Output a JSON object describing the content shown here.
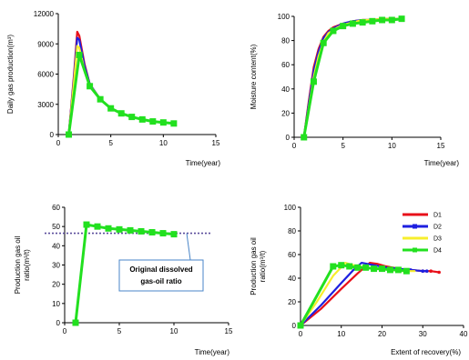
{
  "colors": {
    "D1": "#e8101a",
    "D2": "#1d1fe0",
    "D3": "#f7ee2c",
    "D4": "#22e01f",
    "reference_line": "#5a4b9a",
    "callout_border": "#4a86c8"
  },
  "chart_data": [
    {
      "id": "gas",
      "type": "line",
      "xlabel": "Time(year)",
      "ylabel": "Daily gas production(m³)",
      "xlim": [
        0,
        15
      ],
      "ylim": [
        0,
        12000
      ],
      "xticks": [
        "0",
        "5",
        "10",
        "15"
      ],
      "yticks": [
        "0",
        "3000",
        "6000",
        "9000",
        "12000"
      ],
      "grid": false,
      "series": [
        {
          "name": "D1",
          "color_key": "D1",
          "markers": false,
          "x": [
            1,
            1.5,
            1.8,
            2,
            2.5,
            3,
            4,
            5,
            6,
            7,
            8,
            9,
            10,
            11
          ],
          "y": [
            0,
            6000,
            10200,
            9800,
            7000,
            5000,
            3500,
            2600,
            2100,
            1750,
            1500,
            1300,
            1200,
            1100
          ]
        },
        {
          "name": "D2",
          "color_key": "D2",
          "markers": false,
          "x": [
            1,
            1.5,
            1.8,
            2,
            2.5,
            3,
            4,
            5,
            6,
            7,
            8,
            9,
            10,
            11
          ],
          "y": [
            0,
            5700,
            9600,
            9400,
            6800,
            5000,
            3500,
            2600,
            2100,
            1750,
            1500,
            1300,
            1200,
            1100
          ]
        },
        {
          "name": "D3",
          "color_key": "D3",
          "markers": false,
          "x": [
            1,
            1.5,
            1.8,
            2,
            2.5,
            3,
            4,
            5,
            6,
            7,
            8,
            9,
            10,
            11
          ],
          "y": [
            0,
            5300,
            8800,
            8600,
            6400,
            4900,
            3500,
            2600,
            2100,
            1750,
            1500,
            1300,
            1200,
            1100
          ]
        },
        {
          "name": "D4",
          "color_key": "D4",
          "markers": true,
          "x": [
            1,
            2,
            3,
            4,
            5,
            6,
            7,
            8,
            9,
            10,
            11
          ],
          "y": [
            0,
            7900,
            4800,
            3500,
            2600,
            2100,
            1750,
            1500,
            1300,
            1200,
            1100
          ]
        }
      ]
    },
    {
      "id": "moisture",
      "type": "line",
      "xlabel": "Time(year)",
      "ylabel": "Moisture content(%)",
      "xlim": [
        0,
        15
      ],
      "ylim": [
        0,
        100
      ],
      "xticks": [
        "0",
        "5",
        "10",
        "15"
      ],
      "yticks": [
        "0",
        "20",
        "40",
        "60",
        "80",
        "100"
      ],
      "grid": false,
      "series": [
        {
          "name": "D1",
          "color_key": "D1",
          "markers": false,
          "x": [
            1,
            1.5,
            2,
            2.5,
            3,
            3.5,
            4,
            5,
            6,
            7,
            8,
            9,
            10,
            11
          ],
          "y": [
            0,
            30,
            58,
            73,
            83,
            88,
            91,
            94,
            96,
            97,
            97,
            98,
            98,
            98
          ]
        },
        {
          "name": "D2",
          "color_key": "D2",
          "markers": false,
          "x": [
            1,
            1.5,
            2,
            2.5,
            3,
            3.5,
            4,
            5,
            6,
            7,
            8,
            9,
            10,
            11
          ],
          "y": [
            0,
            28,
            55,
            71,
            82,
            87,
            90,
            94,
            96,
            97,
            97,
            98,
            98,
            98
          ]
        },
        {
          "name": "D3",
          "color_key": "D3",
          "markers": false,
          "x": [
            1,
            1.5,
            2,
            2.5,
            3,
            3.5,
            4,
            5,
            6,
            7,
            8,
            9,
            10,
            11
          ],
          "y": [
            0,
            25,
            50,
            67,
            79,
            86,
            89,
            93,
            95,
            97,
            97,
            98,
            98,
            98
          ]
        },
        {
          "name": "D4",
          "color_key": "D4",
          "markers": true,
          "x": [
            1,
            2,
            3,
            4,
            5,
            6,
            7,
            8,
            9,
            10,
            11
          ],
          "y": [
            0,
            46,
            78,
            88,
            92,
            94,
            95,
            96,
            97,
            97,
            98
          ]
        }
      ]
    },
    {
      "id": "gor_time",
      "type": "line",
      "xlabel": "Time(year)",
      "ylabel": "Production gas oil ratio(m³/t)",
      "xlim": [
        0,
        15
      ],
      "ylim": [
        0,
        60
      ],
      "xticks": [
        "0",
        "5",
        "10",
        "15"
      ],
      "yticks": [
        "0",
        "10",
        "20",
        "30",
        "40",
        "50",
        "60"
      ],
      "grid": false,
      "reference_line": {
        "y": 46.5,
        "label": "Original dissolved gas-oil ratio"
      },
      "series": [
        {
          "name": "D1",
          "color_key": "D1",
          "markers": false,
          "x": [
            1,
            2,
            3,
            4,
            5,
            6,
            7,
            8,
            9,
            10
          ],
          "y": [
            0,
            51,
            50,
            49,
            48.5,
            48,
            47.5,
            47,
            46.5,
            46
          ]
        },
        {
          "name": "D2",
          "color_key": "D2",
          "markers": false,
          "x": [
            1,
            2,
            3,
            4,
            5,
            6,
            7,
            8,
            9,
            10
          ],
          "y": [
            0,
            51,
            50,
            49,
            48.5,
            48,
            47.5,
            47,
            46.5,
            46
          ]
        },
        {
          "name": "D3",
          "color_key": "D3",
          "markers": false,
          "x": [
            1,
            2,
            3,
            4,
            5,
            6,
            7,
            8,
            9,
            10
          ],
          "y": [
            0,
            51,
            50,
            49,
            48.5,
            48,
            47.5,
            47,
            46.5,
            46
          ]
        },
        {
          "name": "D4",
          "color_key": "D4",
          "markers": true,
          "x": [
            1,
            2,
            3,
            4,
            5,
            6,
            7,
            8,
            9,
            10
          ],
          "y": [
            0,
            51,
            50,
            49,
            48.5,
            48,
            47.5,
            47,
            46.5,
            46
          ]
        }
      ]
    },
    {
      "id": "gor_recovery",
      "type": "line",
      "xlabel": "Extent of recovery(%)",
      "ylabel": "Production gas oil ratio(m³/t)",
      "xlim": [
        0,
        40
      ],
      "ylim": [
        0,
        100
      ],
      "xticks": [
        "0",
        "10",
        "20",
        "30",
        "40"
      ],
      "yticks": [
        "0",
        "20",
        "40",
        "60",
        "80",
        "100"
      ],
      "grid": false,
      "legend": {
        "placement": "top-right",
        "entries": [
          "D1",
          "D2",
          "D3",
          "D4"
        ]
      },
      "series": [
        {
          "name": "D1",
          "color_key": "D1",
          "markers": false,
          "end_markers": true,
          "x": [
            0,
            5,
            10,
            14,
            17,
            19,
            21,
            24,
            27,
            30,
            32,
            34
          ],
          "y": [
            0,
            14,
            31,
            44,
            53,
            52,
            50,
            48,
            47,
            46,
            46,
            45
          ]
        },
        {
          "name": "D2",
          "color_key": "D2",
          "markers": false,
          "end_markers": true,
          "x": [
            0,
            5,
            10,
            13,
            15,
            18,
            21,
            24,
            27,
            30,
            31
          ],
          "y": [
            0,
            17,
            36,
            47,
            53,
            51,
            49,
            48,
            47,
            46,
            46
          ]
        },
        {
          "name": "D3",
          "color_key": "D3",
          "markers": false,
          "x": [
            0,
            4,
            8,
            11,
            13,
            16,
            19,
            22,
            25,
            28
          ],
          "y": [
            0,
            20,
            42,
            53,
            51,
            49,
            48,
            47,
            46,
            46
          ]
        },
        {
          "name": "D4",
          "color_key": "D4",
          "markers": true,
          "x": [
            0,
            8,
            10,
            12,
            14,
            16,
            18,
            20,
            22,
            24,
            26
          ],
          "y": [
            0,
            50,
            51,
            50,
            49,
            49,
            48,
            48,
            47,
            47,
            46
          ]
        }
      ]
    }
  ]
}
